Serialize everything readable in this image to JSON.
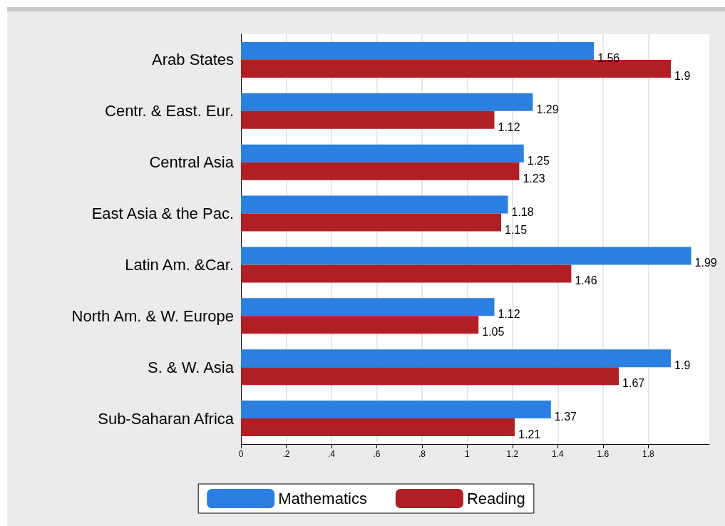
{
  "chart_data": {
    "type": "bar",
    "orientation": "horizontal",
    "categories": [
      "Arab States",
      "Centr. & East. Eur.",
      "Central Asia",
      "East Asia & the Pac.",
      "Latin Am. &Car.",
      "North Am. & W. Europe",
      "S. & W. Asia",
      "Sub-Saharan Africa"
    ],
    "series": [
      {
        "name": "Mathematics",
        "color": "#2a7fe0",
        "values": [
          1.56,
          1.29,
          1.25,
          1.18,
          1.99,
          1.12,
          1.9,
          1.37
        ]
      },
      {
        "name": "Reading",
        "color": "#b01f24",
        "values": [
          1.9,
          1.12,
          1.23,
          1.15,
          1.46,
          1.05,
          1.67,
          1.21
        ]
      }
    ],
    "xlim": [
      0,
      2.07
    ],
    "xticks": [
      0,
      {
        "value": 0.2,
        "label": ".2"
      },
      {
        "value": 0.4,
        "label": ".4"
      },
      {
        "value": 0.6,
        "label": ".6"
      },
      {
        "value": 0.8,
        "label": ".8"
      },
      1,
      1.2,
      1.4,
      1.6,
      1.8
    ],
    "data_labels": true,
    "grid": "x",
    "legend": "bottom"
  }
}
